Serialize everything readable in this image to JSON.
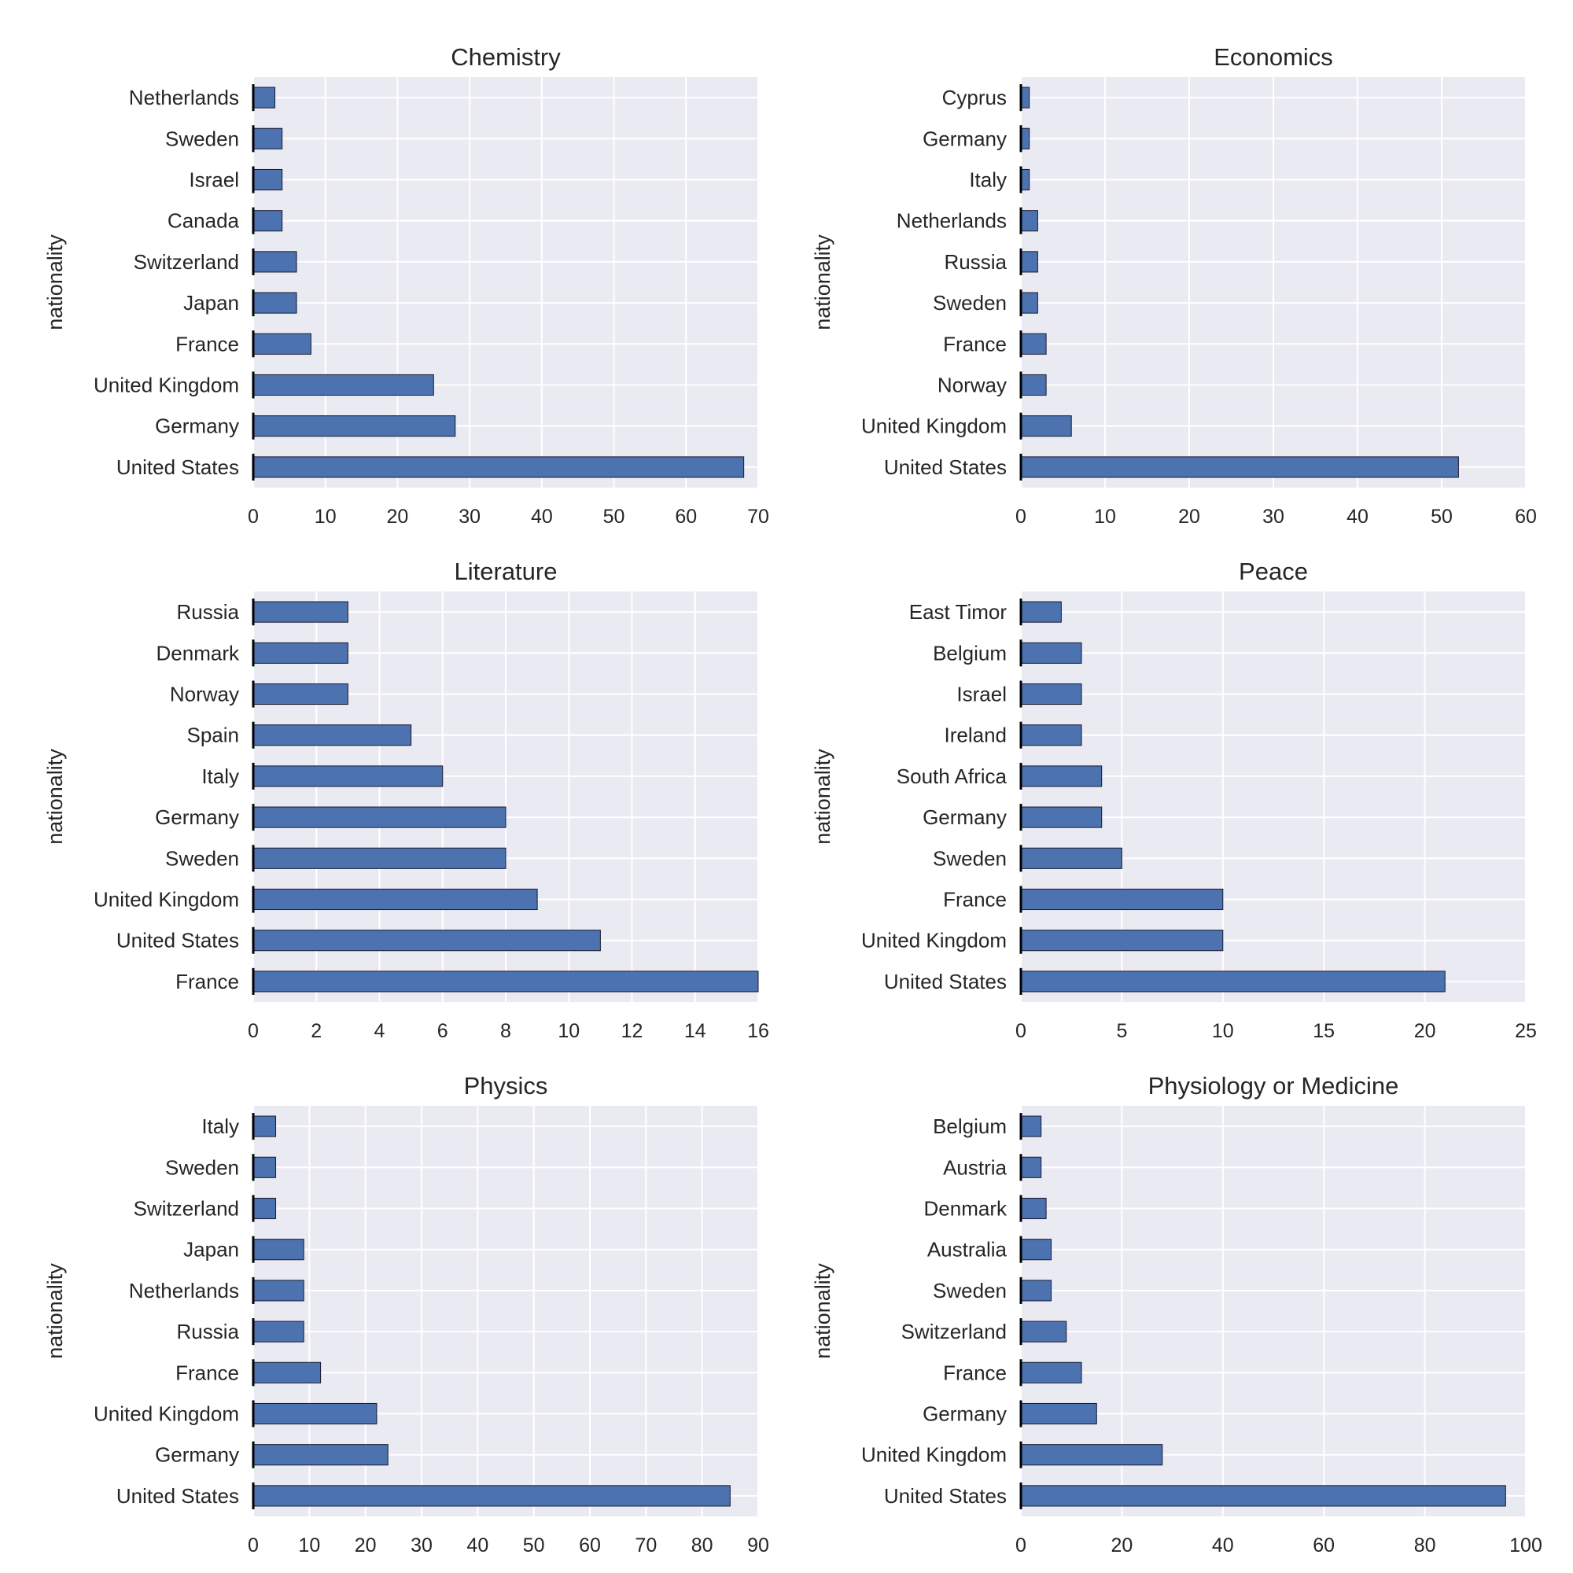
{
  "colors": {
    "bar": "#4c72b0",
    "bar_edge": "#1a1a2e",
    "plot_bg": "#eaeaf2",
    "grid": "#ffffff"
  },
  "chart_data": [
    {
      "type": "bar",
      "orientation": "horizontal",
      "title": "Chemistry",
      "ylabel": "nationality",
      "xlabel": "",
      "categories": [
        "Netherlands",
        "Sweden",
        "Israel",
        "Canada",
        "Switzerland",
        "Japan",
        "France",
        "United Kingdom",
        "Germany",
        "United States"
      ],
      "values": [
        3,
        4,
        4,
        4,
        6,
        6,
        8,
        25,
        28,
        68
      ],
      "xlim": [
        0,
        70
      ],
      "xticks": [
        0,
        10,
        20,
        30,
        40,
        50,
        60,
        70
      ],
      "grid": true
    },
    {
      "type": "bar",
      "orientation": "horizontal",
      "title": "Economics",
      "ylabel": "nationality",
      "xlabel": "",
      "categories": [
        "Cyprus",
        "Germany",
        "Italy",
        "Netherlands",
        "Russia",
        "Sweden",
        "France",
        "Norway",
        "United Kingdom",
        "United States"
      ],
      "values": [
        1,
        1,
        1,
        2,
        2,
        2,
        3,
        3,
        6,
        52
      ],
      "xlim": [
        0,
        60
      ],
      "xticks": [
        0,
        10,
        20,
        30,
        40,
        50,
        60
      ],
      "grid": true
    },
    {
      "type": "bar",
      "orientation": "horizontal",
      "title": "Literature",
      "ylabel": "nationality",
      "xlabel": "",
      "categories": [
        "Russia",
        "Denmark",
        "Norway",
        "Spain",
        "Italy",
        "Germany",
        "Sweden",
        "United Kingdom",
        "United States",
        "France"
      ],
      "values": [
        3,
        3,
        3,
        5,
        6,
        8,
        8,
        9,
        11,
        16
      ],
      "xlim": [
        0,
        16
      ],
      "xticks": [
        0,
        2,
        4,
        6,
        8,
        10,
        12,
        14,
        16
      ],
      "grid": true
    },
    {
      "type": "bar",
      "orientation": "horizontal",
      "title": "Peace",
      "ylabel": "nationality",
      "xlabel": "",
      "categories": [
        "East Timor",
        "Belgium",
        "Israel",
        "Ireland",
        "South Africa",
        "Germany",
        "Sweden",
        "France",
        "United Kingdom",
        "United States"
      ],
      "values": [
        2,
        3,
        3,
        3,
        4,
        4,
        5,
        10,
        10,
        21
      ],
      "xlim": [
        0,
        25
      ],
      "xticks": [
        0,
        5,
        10,
        15,
        20,
        25
      ],
      "grid": true
    },
    {
      "type": "bar",
      "orientation": "horizontal",
      "title": "Physics",
      "ylabel": "nationality",
      "xlabel": "",
      "categories": [
        "Italy",
        "Sweden",
        "Switzerland",
        "Japan",
        "Netherlands",
        "Russia",
        "France",
        "United Kingdom",
        "Germany",
        "United States"
      ],
      "values": [
        4,
        4,
        4,
        9,
        9,
        9,
        12,
        22,
        24,
        85
      ],
      "xlim": [
        0,
        90
      ],
      "xticks": [
        0,
        10,
        20,
        30,
        40,
        50,
        60,
        70,
        80,
        90
      ],
      "grid": true
    },
    {
      "type": "bar",
      "orientation": "horizontal",
      "title": "Physiology or Medicine",
      "ylabel": "nationality",
      "xlabel": "",
      "categories": [
        "Belgium",
        "Austria",
        "Denmark",
        "Australia",
        "Sweden",
        "Switzerland",
        "France",
        "Germany",
        "United Kingdom",
        "United States"
      ],
      "values": [
        4,
        4,
        5,
        6,
        6,
        9,
        12,
        15,
        28,
        96
      ],
      "xlim": [
        0,
        100
      ],
      "xticks": [
        0,
        20,
        40,
        60,
        80,
        100
      ],
      "grid": true
    }
  ]
}
